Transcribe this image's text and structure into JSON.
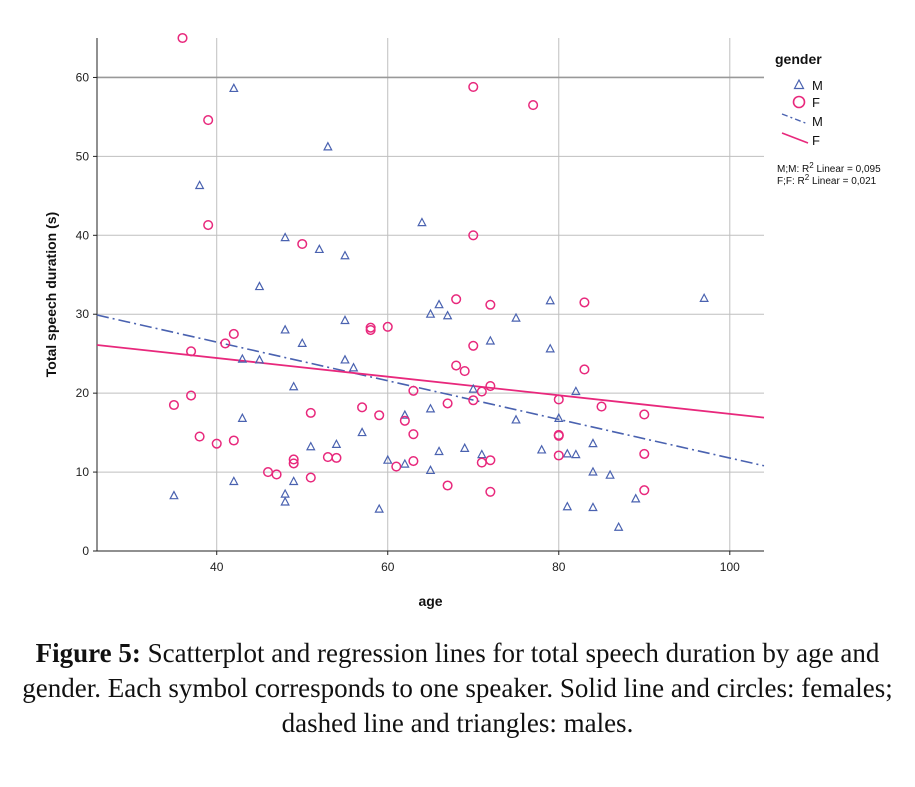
{
  "chart_data": {
    "type": "scatter",
    "xlabel": "age",
    "ylabel": "Total speech duration (s)",
    "xlim": [
      26,
      104
    ],
    "ylim": [
      0,
      65
    ],
    "xticks": [
      40,
      60,
      80,
      100
    ],
    "yticks": [
      0,
      10,
      20,
      30,
      40,
      50,
      60
    ],
    "grid": true,
    "legend": {
      "title": "gender",
      "placement": "top-right",
      "entries": [
        {
          "label": "M",
          "kind": "marker",
          "marker": "triangle"
        },
        {
          "label": "F",
          "kind": "marker",
          "marker": "circle"
        },
        {
          "label": "M",
          "kind": "line",
          "style": "dashdot"
        },
        {
          "label": "F",
          "kind": "line",
          "style": "solid"
        }
      ],
      "r2": [
        {
          "prefix": "M;M: R",
          "sup": "2",
          "suffix": " Linear = 0,095"
        },
        {
          "prefix": "F;F: R",
          "sup": "2",
          "suffix": " Linear = 0,021"
        }
      ]
    },
    "colors": {
      "M": "#4a62b0",
      "F": "#e8287c",
      "grid": "#bfbfbf",
      "reference": "#999999"
    },
    "reference_line_y": 60,
    "series": [
      {
        "name": "M",
        "marker": "triangle",
        "points": [
          [
            35,
            7
          ],
          [
            38,
            46.3
          ],
          [
            42,
            58.6
          ],
          [
            42,
            8.8
          ],
          [
            43,
            24.3
          ],
          [
            43,
            16.8
          ],
          [
            45,
            33.5
          ],
          [
            45,
            24.2
          ],
          [
            48,
            39.7
          ],
          [
            48,
            28
          ],
          [
            48,
            7.2
          ],
          [
            48,
            6.2
          ],
          [
            49,
            20.8
          ],
          [
            49,
            8.8
          ],
          [
            50,
            26.3
          ],
          [
            51,
            13.2
          ],
          [
            52,
            38.2
          ],
          [
            53,
            51.2
          ],
          [
            54,
            13.5
          ],
          [
            55,
            37.4
          ],
          [
            55,
            29.2
          ],
          [
            55,
            24.2
          ],
          [
            56,
            23.2
          ],
          [
            57,
            15
          ],
          [
            59,
            5.3
          ],
          [
            60,
            11.5
          ],
          [
            62,
            11
          ],
          [
            62,
            17.2
          ],
          [
            64,
            41.6
          ],
          [
            65,
            30
          ],
          [
            65,
            18
          ],
          [
            65,
            10.2
          ],
          [
            66,
            31.2
          ],
          [
            66,
            12.6
          ],
          [
            67,
            29.8
          ],
          [
            69,
            13
          ],
          [
            70,
            20.5
          ],
          [
            71,
            12.2
          ],
          [
            72,
            26.6
          ],
          [
            75,
            29.5
          ],
          [
            75,
            16.6
          ],
          [
            78,
            12.8
          ],
          [
            79,
            31.7
          ],
          [
            79,
            25.6
          ],
          [
            80,
            16.8
          ],
          [
            81,
            12.3
          ],
          [
            81,
            5.6
          ],
          [
            82,
            20.2
          ],
          [
            82,
            12.2
          ],
          [
            84,
            13.6
          ],
          [
            84,
            10
          ],
          [
            84,
            5.5
          ],
          [
            86,
            9.6
          ],
          [
            87,
            3
          ],
          [
            89,
            6.6
          ],
          [
            97,
            32
          ]
        ],
        "regression": [
          [
            26,
            29.9
          ],
          [
            104,
            10.8
          ]
        ]
      },
      {
        "name": "F",
        "marker": "circle",
        "points": [
          [
            35,
            18.5
          ],
          [
            36,
            65
          ],
          [
            37,
            25.3
          ],
          [
            37,
            19.7
          ],
          [
            38,
            14.5
          ],
          [
            39,
            54.6
          ],
          [
            39,
            41.3
          ],
          [
            40,
            13.6
          ],
          [
            41,
            26.3
          ],
          [
            42,
            27.5
          ],
          [
            42,
            14
          ],
          [
            46,
            10
          ],
          [
            47,
            9.7
          ],
          [
            49,
            11.6
          ],
          [
            49,
            11.1
          ],
          [
            50,
            38.9
          ],
          [
            51,
            17.5
          ],
          [
            51,
            9.3
          ],
          [
            53,
            11.9
          ],
          [
            54,
            11.8
          ],
          [
            57,
            18.2
          ],
          [
            58,
            28.3
          ],
          [
            58,
            28
          ],
          [
            59,
            17.2
          ],
          [
            60,
            28.4
          ],
          [
            61,
            10.7
          ],
          [
            62,
            16.5
          ],
          [
            63,
            20.3
          ],
          [
            63,
            14.8
          ],
          [
            63,
            11.4
          ],
          [
            67,
            18.7
          ],
          [
            67,
            8.3
          ],
          [
            68,
            31.9
          ],
          [
            68,
            23.5
          ],
          [
            69,
            22.8
          ],
          [
            70,
            58.8
          ],
          [
            70,
            40
          ],
          [
            70,
            26
          ],
          [
            70,
            19.1
          ],
          [
            71,
            20.2
          ],
          [
            71,
            11.2
          ],
          [
            72,
            31.2
          ],
          [
            72,
            20.9
          ],
          [
            72,
            11.5
          ],
          [
            72,
            7.5
          ],
          [
            77,
            56.5
          ],
          [
            80,
            19.2
          ],
          [
            80,
            14.7
          ],
          [
            80,
            14.6
          ],
          [
            80,
            12.1
          ],
          [
            83,
            31.5
          ],
          [
            83,
            23
          ],
          [
            85,
            18.3
          ],
          [
            90,
            17.3
          ],
          [
            90,
            12.3
          ],
          [
            90,
            7.7
          ]
        ],
        "regression": [
          [
            26,
            26.1
          ],
          [
            104,
            16.9
          ]
        ]
      }
    ]
  },
  "caption": {
    "label": "Figure 5:",
    "text": " Scatterplot and regression lines for total speech duration by age and gender. Each symbol corresponds to one speaker. Solid line and circles: females; dashed line and triangles: males."
  }
}
